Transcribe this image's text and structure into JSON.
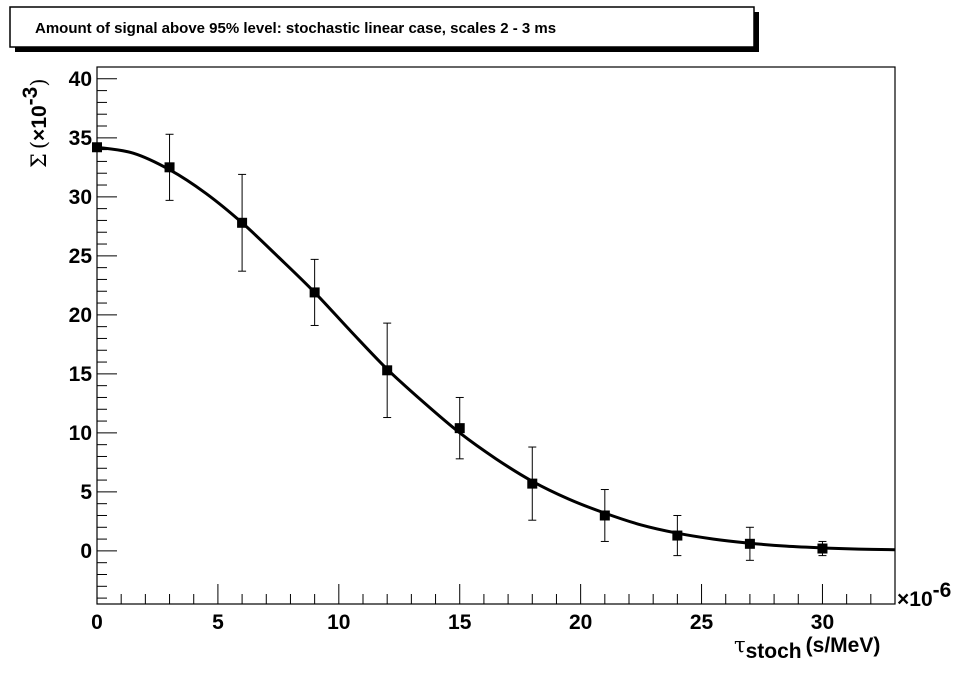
{
  "chart_data": {
    "type": "scatter",
    "title": "Amount of signal above 95% level: stochastic linear case, scales 2 - 3 ms",
    "xlabel": {
      "symbol": "τ",
      "subscript": "stoch",
      "unit": "(s/MeV)",
      "exponent_prefix": "×10",
      "exponent": "-6"
    },
    "ylabel": {
      "symbol": "Σ",
      "paren_open": "(",
      "multiplier": "×10",
      "exponent": "-3",
      "paren_close": ")"
    },
    "xlim": [
      0,
      33
    ],
    "ylim": [
      -4.5,
      41
    ],
    "x_ticks": [
      0,
      5,
      10,
      15,
      20,
      25,
      30
    ],
    "x_tick_labels": [
      "0",
      "5",
      "10",
      "15",
      "20",
      "25",
      "30"
    ],
    "y_ticks": [
      0,
      5,
      10,
      15,
      20,
      25,
      30,
      35,
      40
    ],
    "y_tick_labels": [
      "0",
      "5",
      "10",
      "15",
      "20",
      "25",
      "30",
      "35",
      "40"
    ],
    "grid": false,
    "series": [
      {
        "marker": "square",
        "x": [
          0,
          3,
          6,
          9,
          12,
          15,
          18,
          21,
          24,
          27,
          30
        ],
        "y": [
          34.2,
          32.5,
          27.8,
          21.9,
          15.3,
          10.4,
          5.7,
          3.0,
          1.3,
          0.6,
          0.2
        ],
        "err": [
          0.0,
          2.8,
          4.1,
          2.8,
          4.0,
          2.6,
          3.1,
          2.2,
          1.7,
          1.4,
          0.6
        ]
      }
    ],
    "fit_curve": {
      "x": [
        0,
        1.5,
        3,
        4.5,
        6,
        7.5,
        9,
        10.5,
        12,
        13.5,
        15,
        16.5,
        18,
        19.5,
        21,
        22.5,
        24,
        25.5,
        27,
        28.5,
        30,
        31.5,
        33
      ],
      "y": [
        34.2,
        33.7,
        32.3,
        30.3,
        27.8,
        24.9,
        21.9,
        18.6,
        15.4,
        12.6,
        10.0,
        7.8,
        5.9,
        4.4,
        3.2,
        2.2,
        1.5,
        1.0,
        0.65,
        0.4,
        0.25,
        0.15,
        0.1
      ]
    }
  }
}
